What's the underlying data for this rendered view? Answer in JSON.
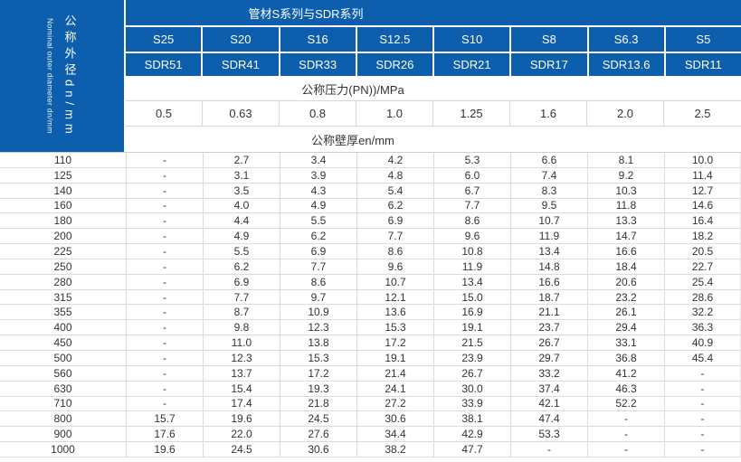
{
  "left_header": {
    "cn": "公称外径dn/mm",
    "en": "Nominal outer diameter dn/mm"
  },
  "header": {
    "title": "管材S系列与SDR系列",
    "s_series": [
      "S25",
      "S20",
      "S16",
      "S12.5",
      "S10",
      "S8",
      "S6.3",
      "S5"
    ],
    "sdr_series": [
      "SDR51",
      "SDR41",
      "SDR33",
      "SDR26",
      "SDR21",
      "SDR17",
      "SDR13.6",
      "SDR11"
    ],
    "pressure_label": "公称压力(PN))/MPa",
    "pressure_values": [
      "0.5",
      "0.63",
      "0.8",
      "1.0",
      "1.25",
      "1.6",
      "2.0",
      "2.5"
    ],
    "thickness_label": "公称壁厚en/mm"
  },
  "colors": {
    "header_blue": "#0d5ead",
    "grid_border": "#d6d6d6",
    "text_dark": "#333333"
  },
  "table": {
    "rows": [
      {
        "dn": "110",
        "values": [
          "-",
          "2.7",
          "3.4",
          "4.2",
          "5.3",
          "6.6",
          "8.1",
          "10.0"
        ]
      },
      {
        "dn": "125",
        "values": [
          "-",
          "3.1",
          "3.9",
          "4.8",
          "6.0",
          "7.4",
          "9.2",
          "11.4"
        ]
      },
      {
        "dn": "140",
        "values": [
          "-",
          "3.5",
          "4.3",
          "5.4",
          "6.7",
          "8.3",
          "10.3",
          "12.7"
        ]
      },
      {
        "dn": "160",
        "values": [
          "-",
          "4.0",
          "4.9",
          "6.2",
          "7.7",
          "9.5",
          "11.8",
          "14.6"
        ]
      },
      {
        "dn": "180",
        "values": [
          "-",
          "4.4",
          "5.5",
          "6.9",
          "8.6",
          "10.7",
          "13.3",
          "16.4"
        ]
      },
      {
        "dn": "200",
        "values": [
          "-",
          "4.9",
          "6.2",
          "7.7",
          "9.6",
          "11.9",
          "14.7",
          "18.2"
        ]
      },
      {
        "dn": "225",
        "values": [
          "-",
          "5.5",
          "6.9",
          "8.6",
          "10.8",
          "13.4",
          "16.6",
          "20.5"
        ]
      },
      {
        "dn": "250",
        "values": [
          "-",
          "6.2",
          "7.7",
          "9.6",
          "11.9",
          "14.8",
          "18.4",
          "22.7"
        ]
      },
      {
        "dn": "280",
        "values": [
          "-",
          "6.9",
          "8.6",
          "10.7",
          "13.4",
          "16.6",
          "20.6",
          "25.4"
        ]
      },
      {
        "dn": "315",
        "values": [
          "-",
          "7.7",
          "9.7",
          "12.1",
          "15.0",
          "18.7",
          "23.2",
          "28.6"
        ]
      },
      {
        "dn": "355",
        "values": [
          "-",
          "8.7",
          "10.9",
          "13.6",
          "16.9",
          "21.1",
          "26.1",
          "32.2"
        ]
      },
      {
        "dn": "400",
        "values": [
          "-",
          "9.8",
          "12.3",
          "15.3",
          "19.1",
          "23.7",
          "29.4",
          "36.3"
        ]
      },
      {
        "dn": "450",
        "values": [
          "-",
          "11.0",
          "13.8",
          "17.2",
          "21.5",
          "26.7",
          "33.1",
          "40.9"
        ]
      },
      {
        "dn": "500",
        "values": [
          "-",
          "12.3",
          "15.3",
          "19.1",
          "23.9",
          "29.7",
          "36.8",
          "45.4"
        ]
      },
      {
        "dn": "560",
        "values": [
          "-",
          "13.7",
          "17.2",
          "21.4",
          "26.7",
          "33.2",
          "41.2",
          "-"
        ]
      },
      {
        "dn": "630",
        "values": [
          "-",
          "15.4",
          "19.3",
          "24.1",
          "30.0",
          "37.4",
          "46.3",
          "-"
        ]
      },
      {
        "dn": "710",
        "values": [
          "-",
          "17.4",
          "21.8",
          "27.2",
          "33.9",
          "42.1",
          "52.2",
          "-"
        ]
      },
      {
        "dn": "800",
        "values": [
          "15.7",
          "19.6",
          "24.5",
          "30.6",
          "38.1",
          "47.4",
          "-",
          "-"
        ]
      },
      {
        "dn": "900",
        "values": [
          "17.6",
          "22.0",
          "27.6",
          "34.4",
          "42.9",
          "53.3",
          "-",
          "-"
        ]
      },
      {
        "dn": "1000",
        "values": [
          "19.6",
          "24.5",
          "30.6",
          "38.2",
          "47.7",
          "-",
          "-",
          "-"
        ]
      }
    ]
  }
}
